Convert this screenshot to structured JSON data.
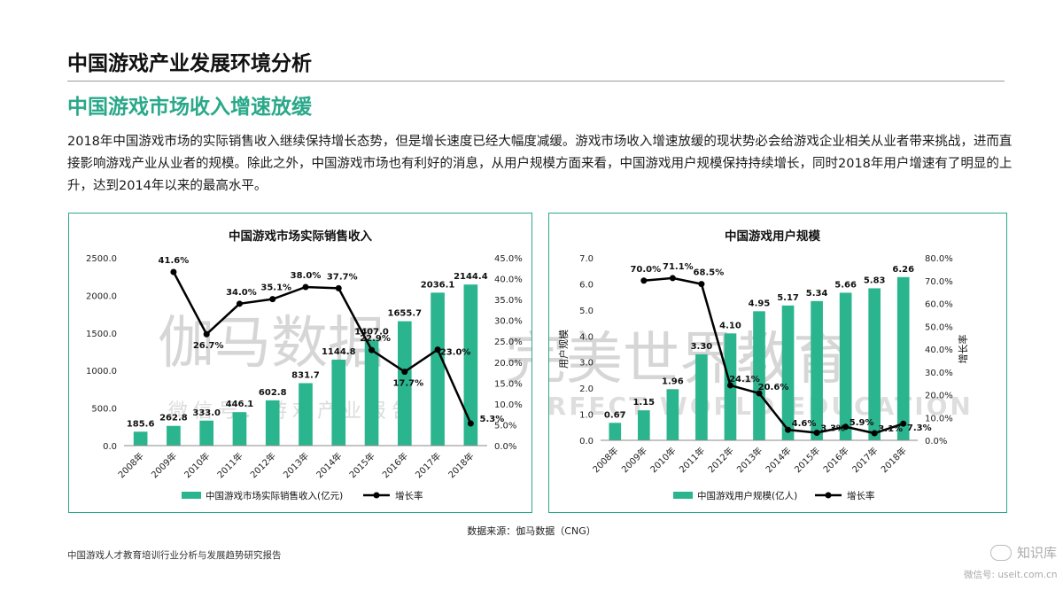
{
  "header": {
    "title": "中国游戏产业发展环境分析",
    "subtitle": "中国游戏市场收入增速放缓",
    "paragraph": "2018年中国游戏市场的实际销售收入继续保持增长态势，但是增长速度已经大幅度减缓。游戏市场收入增速放缓的现状势必会给游戏企业相关从业者带来挑战，进而直接影响游戏产业从业者的规模。除此之外，中国游戏市场也有利好的消息，从用户规模方面来看，中国游戏用户规模保持持续增长，同时2018年用户增速有了明显的上升，达到2014年以来的最高水平。"
  },
  "colors": {
    "accent": "#2aa88a",
    "bar": "#2ab58e",
    "line": "#000000"
  },
  "chart_data": [
    {
      "type": "bar",
      "title": "中国游戏市场实际销售收入",
      "categories": [
        "2008年",
        "2009年",
        "2010年",
        "2011年",
        "2012年",
        "2013年",
        "2014年",
        "2015年",
        "2016年",
        "2017年",
        "2018年"
      ],
      "series": [
        {
          "name": "中国游戏市场实际销售收入(亿元)",
          "kind": "bar",
          "axis": "left",
          "values": [
            185.6,
            262.8,
            333.0,
            446.1,
            602.8,
            831.7,
            1144.8,
            1407.0,
            1655.7,
            2036.1,
            2144.4
          ],
          "labels": [
            "185.6",
            "262.8",
            "333.0",
            "446.1",
            "602.8",
            "831.7",
            "1144.8",
            "1407.0",
            "1655.7",
            "2036.1",
            "2144.4"
          ]
        },
        {
          "name": "增长率",
          "kind": "line",
          "axis": "right",
          "values": [
            null,
            41.6,
            26.7,
            34.0,
            35.1,
            38.0,
            37.7,
            22.9,
            17.7,
            23.0,
            5.3
          ],
          "labels": [
            null,
            "41.6%",
            "26.7%",
            "34.0%",
            "35.1%",
            "38.0%",
            "37.7%",
            "22.9%",
            "17.7%",
            "23.0%",
            "5.3%"
          ]
        }
      ],
      "ylim_left": [
        0,
        2500
      ],
      "yticks_left": [
        "0.0",
        "500.0",
        "1000.0",
        "1500.0",
        "2000.0",
        "2500.0"
      ],
      "ylim_right": [
        0,
        45
      ],
      "yticks_right": [
        "0.0%",
        "5.0%",
        "10.0%",
        "15.0%",
        "20.0%",
        "25.0%",
        "30.0%",
        "35.0%",
        "40.0%",
        "45.0%"
      ],
      "ylabel_left": "",
      "ylabel_right": "",
      "legend": "bottom"
    },
    {
      "type": "bar",
      "title": "中国游戏用户规模",
      "categories": [
        "2008年",
        "2009年",
        "2010年",
        "2011年",
        "2012年",
        "2013年",
        "2014年",
        "2015年",
        "2016年",
        "2017年",
        "2018年"
      ],
      "series": [
        {
          "name": "中国游戏用户规模(亿人)",
          "kind": "bar",
          "axis": "left",
          "values": [
            0.67,
            1.15,
            1.96,
            3.3,
            4.1,
            4.95,
            5.17,
            5.34,
            5.66,
            5.83,
            6.26
          ],
          "labels": [
            "0.67",
            "1.15",
            "1.96",
            "3.30",
            "4.10",
            "4.95",
            "5.17",
            "5.34",
            "5.66",
            "5.83",
            "6.26"
          ]
        },
        {
          "name": "增长率",
          "kind": "line",
          "axis": "right",
          "values": [
            null,
            70.0,
            71.1,
            68.5,
            24.1,
            20.6,
            4.6,
            3.3,
            5.9,
            3.1,
            7.3
          ],
          "labels": [
            null,
            "70.0%",
            "71.1%",
            "68.5%",
            "24.1%",
            "20.6%",
            "4.6%",
            "3.3%",
            "5.9%",
            "3.1%",
            "7.3%"
          ]
        }
      ],
      "ylim_left": [
        0,
        7
      ],
      "yticks_left": [
        "0.0",
        "1.0",
        "2.0",
        "3.0",
        "4.0",
        "5.0",
        "6.0",
        "7.0"
      ],
      "ylim_right": [
        0,
        80
      ],
      "yticks_right": [
        "0.0%",
        "10.0%",
        "20.0%",
        "30.0%",
        "40.0%",
        "50.0%",
        "60.0%",
        "70.0%",
        "80.0%"
      ],
      "ylabel_left": "用户规模",
      "ylabel_right": "增长率",
      "legend": "bottom"
    }
  ],
  "watermarks": {
    "left_main": "伽马数据",
    "left_sub": "微信号：游戏产业报告",
    "right_main": "完美世界教育",
    "right_sub": "PERFECT WORLD EDUCATION"
  },
  "source": "数据来源：伽马数据（CNG）",
  "footer": "中国游戏人才教育培训行业分析与发展趋势研究报告",
  "corner": {
    "name": "知识库",
    "id": "微信号: useit.com.cn"
  }
}
